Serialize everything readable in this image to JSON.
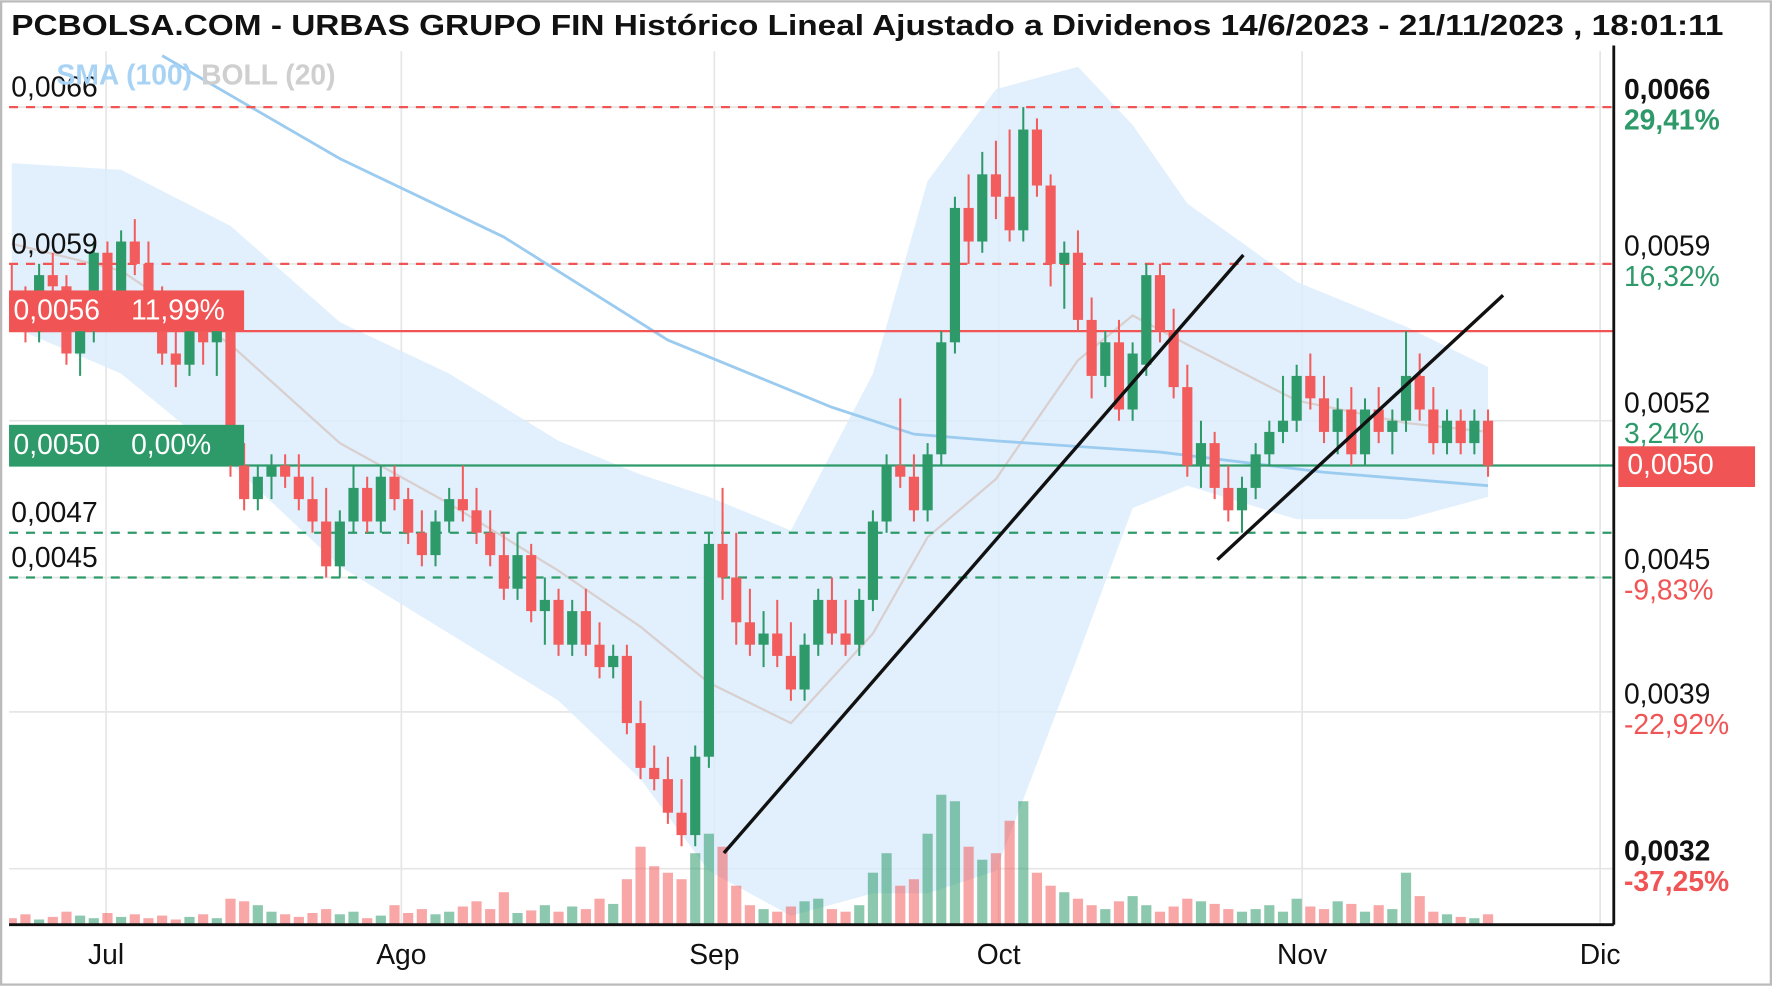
{
  "chart_data": {
    "type": "candlestick",
    "title": "PCBOLSA.COM - URBAS GRUPO FIN Histórico Lineal Ajustado a Dividenos 14/6/2023 - 21/11/2023 , 18:01:11",
    "legend": [
      {
        "name": "SMA (100)",
        "color": "#a9d3f5"
      },
      {
        "name": "BOLL (20)",
        "color": "#cfcfcf"
      }
    ],
    "up_color": "#2e9a6a",
    "down_color": "#f25c5c",
    "xlim": [
      -0.2,
      117.2
    ],
    "xticks": [
      {
        "value": 6.9,
        "label": "Jul"
      },
      {
        "value": 28.5,
        "label": "Ago"
      },
      {
        "value": 51.4,
        "label": "Sep"
      },
      {
        "value": 72.2,
        "label": "Oct"
      },
      {
        "value": 94.4,
        "label": "Nov"
      },
      {
        "value": 116.2,
        "label": "Dic"
      }
    ],
    "ylim": [
      0.00295,
      0.00685
    ],
    "yticks": [
      {
        "value": 0.0066,
        "label": "0,0066",
        "pct": "29,41%",
        "pct_color": "#2e9a6a",
        "bold": true
      },
      {
        "value": 0.0059,
        "label": "0,0059",
        "pct": "16,32%",
        "pct_color": "#2e9a6a",
        "bold": false
      },
      {
        "value": 0.0052,
        "label": "0,0052",
        "pct": "3,24%",
        "pct_color": "#2e9a6a",
        "bold": false
      },
      {
        "value": 0.0045,
        "label": "0,0045",
        "pct": "-9,83%",
        "pct_color": "#f05454",
        "bold": false
      },
      {
        "value": 0.0039,
        "label": "0,0039",
        "pct": "-22,92%",
        "pct_color": "#f05454",
        "bold": false
      },
      {
        "value": 0.0032,
        "label": "0,0032",
        "pct": "-37,25%",
        "pct_color": "#f05454",
        "bold": true
      }
    ],
    "grid": true,
    "last_price": {
      "value": 0.005,
      "label": "0,0050",
      "color": "#f05454"
    },
    "levels": [
      {
        "value": 0.0066,
        "color": "#f05454",
        "style": "dashed"
      },
      {
        "value": 0.0059,
        "color": "#f05454",
        "style": "dashed"
      },
      {
        "value": 0.0056,
        "color": "#f05454",
        "style": "solid"
      },
      {
        "value": 0.005,
        "color": "#2e9a6a",
        "style": "solid"
      },
      {
        "value": 0.0047,
        "color": "#2e9a6a",
        "style": "dashed"
      },
      {
        "value": 0.0045,
        "color": "#2e9a6a",
        "style": "dashed"
      }
    ],
    "left_labels": [
      {
        "value": 0.0066,
        "label": "0,0066"
      },
      {
        "value": 0.0059,
        "label": "0,0059"
      },
      {
        "value": 0.0047,
        "label": "0,0047"
      },
      {
        "value": 0.0045,
        "label": "0,0045"
      }
    ],
    "left_boxes": [
      {
        "value": 0.0056,
        "label": "0,0056",
        "pct": "11,99%",
        "color": "#f05454"
      },
      {
        "value": 0.005,
        "label": "0,0050",
        "pct": "0,00%",
        "color": "#2e9a6a"
      }
    ],
    "open": [
      0.00575,
      0.0057,
      0.0056,
      0.00585,
      0.0058,
      0.0055,
      0.0056,
      0.00595,
      0.00575,
      0.006,
      0.0059,
      0.00575,
      0.0055,
      0.00545,
      0.0056,
      0.00555,
      0.0056,
      0.005,
      0.00485,
      0.00495,
      0.005,
      0.00495,
      0.00485,
      0.00475,
      0.00455,
      0.00475,
      0.0049,
      0.00475,
      0.00495,
      0.00485,
      0.0047,
      0.0046,
      0.00475,
      0.00485,
      0.0048,
      0.0047,
      0.0046,
      0.00445,
      0.0046,
      0.00435,
      0.0044,
      0.0042,
      0.00435,
      0.0042,
      0.0041,
      0.00415,
      0.00385,
      0.00365,
      0.0036,
      0.00345,
      0.00335,
      0.0037,
      0.00465,
      0.0045,
      0.0043,
      0.0042,
      0.00425,
      0.00415,
      0.004,
      0.0042,
      0.0044,
      0.00425,
      0.0042,
      0.0044,
      0.00475,
      0.005,
      0.00495,
      0.0048,
      0.00505,
      0.00555,
      0.00615,
      0.006,
      0.0063,
      0.0062,
      0.00605,
      0.0065,
      0.00625,
      0.0059,
      0.00595,
      0.00565,
      0.0054,
      0.00555,
      0.00525,
      0.00545,
      0.00585,
      0.0056,
      0.00535,
      0.005,
      0.0051,
      0.0049,
      0.0048,
      0.0049,
      0.00505,
      0.00515,
      0.0052,
      0.0054,
      0.0053,
      0.00515,
      0.00525,
      0.00505,
      0.00525,
      0.00515,
      0.0052,
      0.0054,
      0.00525,
      0.0051,
      0.0052,
      0.0051,
      0.0052
    ],
    "high": [
      0.0059,
      0.0058,
      0.0059,
      0.00595,
      0.00585,
      0.00565,
      0.006,
      0.006,
      0.00605,
      0.0061,
      0.006,
      0.0058,
      0.0056,
      0.00565,
      0.0057,
      0.00565,
      0.00565,
      0.0051,
      0.005,
      0.00505,
      0.00505,
      0.00505,
      0.00495,
      0.0049,
      0.0048,
      0.005,
      0.00495,
      0.005,
      0.005,
      0.0049,
      0.0048,
      0.0048,
      0.0049,
      0.005,
      0.0049,
      0.0048,
      0.0047,
      0.0047,
      0.00465,
      0.0045,
      0.00445,
      0.0044,
      0.00445,
      0.0043,
      0.0042,
      0.0042,
      0.00395,
      0.00375,
      0.0037,
      0.0036,
      0.00375,
      0.0047,
      0.0049,
      0.0047,
      0.00445,
      0.00435,
      0.0044,
      0.0043,
      0.00425,
      0.00445,
      0.0045,
      0.0044,
      0.00445,
      0.0048,
      0.00505,
      0.0053,
      0.00505,
      0.0051,
      0.0056,
      0.0062,
      0.0063,
      0.0064,
      0.00645,
      0.0065,
      0.0066,
      0.00655,
      0.0063,
      0.006,
      0.00605,
      0.00575,
      0.0056,
      0.00565,
      0.00555,
      0.0059,
      0.0059,
      0.0057,
      0.00545,
      0.0052,
      0.00515,
      0.005,
      0.00495,
      0.0051,
      0.0052,
      0.0054,
      0.00545,
      0.0055,
      0.0054,
      0.0053,
      0.00535,
      0.0053,
      0.00535,
      0.00525,
      0.0056,
      0.0055,
      0.00535,
      0.00525,
      0.00525,
      0.00525,
      0.00525
    ],
    "low": [
      0.0056,
      0.00555,
      0.00555,
      0.00575,
      0.00545,
      0.0054,
      0.00555,
      0.0057,
      0.0057,
      0.00585,
      0.0057,
      0.00545,
      0.00535,
      0.0054,
      0.00545,
      0.0054,
      0.00495,
      0.0048,
      0.0048,
      0.00485,
      0.0049,
      0.0048,
      0.0047,
      0.0045,
      0.0045,
      0.0047,
      0.0047,
      0.0047,
      0.0048,
      0.00465,
      0.00455,
      0.00455,
      0.0047,
      0.00475,
      0.00465,
      0.00455,
      0.0044,
      0.0044,
      0.0043,
      0.0042,
      0.00415,
      0.00415,
      0.00415,
      0.00405,
      0.00405,
      0.0038,
      0.0036,
      0.00355,
      0.0034,
      0.0033,
      0.0033,
      0.00365,
      0.0044,
      0.0042,
      0.00415,
      0.0041,
      0.0041,
      0.00395,
      0.00395,
      0.00415,
      0.0042,
      0.00415,
      0.00415,
      0.00435,
      0.0047,
      0.0049,
      0.00475,
      0.00475,
      0.005,
      0.0055,
      0.0059,
      0.00595,
      0.0061,
      0.006,
      0.006,
      0.0062,
      0.0058,
      0.0057,
      0.0056,
      0.0053,
      0.00535,
      0.0052,
      0.0052,
      0.0054,
      0.00555,
      0.0053,
      0.00495,
      0.0049,
      0.00485,
      0.00475,
      0.0047,
      0.00485,
      0.005,
      0.0051,
      0.00515,
      0.00525,
      0.0051,
      0.00505,
      0.005,
      0.005,
      0.0051,
      0.00505,
      0.00515,
      0.0052,
      0.00505,
      0.00505,
      0.00505,
      0.00505,
      0.00495
    ],
    "close": [
      0.0057,
      0.0056,
      0.00585,
      0.0058,
      0.0055,
      0.0056,
      0.00595,
      0.00575,
      0.006,
      0.0059,
      0.00575,
      0.0055,
      0.00545,
      0.0056,
      0.00555,
      0.0056,
      0.005,
      0.00485,
      0.00495,
      0.005,
      0.00495,
      0.00485,
      0.00475,
      0.00455,
      0.00475,
      0.0049,
      0.00475,
      0.00495,
      0.00485,
      0.0047,
      0.0046,
      0.00475,
      0.00485,
      0.0048,
      0.0047,
      0.0046,
      0.00445,
      0.0046,
      0.00435,
      0.0044,
      0.0042,
      0.00435,
      0.0042,
      0.0041,
      0.00415,
      0.00385,
      0.00365,
      0.0036,
      0.00345,
      0.00335,
      0.0037,
      0.00465,
      0.0045,
      0.0043,
      0.0042,
      0.00425,
      0.00415,
      0.004,
      0.0042,
      0.0044,
      0.00425,
      0.0042,
      0.0044,
      0.00475,
      0.005,
      0.00495,
      0.0048,
      0.00505,
      0.00555,
      0.00615,
      0.006,
      0.0063,
      0.0062,
      0.00605,
      0.0065,
      0.00625,
      0.0059,
      0.00595,
      0.00565,
      0.0054,
      0.00555,
      0.00525,
      0.0055,
      0.00585,
      0.0056,
      0.00535,
      0.005,
      0.0051,
      0.0049,
      0.0048,
      0.0049,
      0.00505,
      0.00515,
      0.0052,
      0.0054,
      0.0053,
      0.00515,
      0.00525,
      0.00505,
      0.00525,
      0.00515,
      0.0052,
      0.0054,
      0.00525,
      0.0051,
      0.0052,
      0.0051,
      0.0052,
      0.005
    ],
    "volume": [
      5,
      8,
      4,
      6,
      10,
      7,
      5,
      9,
      6,
      8,
      5,
      7,
      4,
      6,
      8,
      5,
      20,
      18,
      15,
      10,
      8,
      6,
      9,
      12,
      8,
      10,
      5,
      7,
      15,
      9,
      12,
      8,
      10,
      14,
      18,
      12,
      25,
      9,
      11,
      15,
      10,
      14,
      12,
      20,
      16,
      35,
      60,
      45,
      40,
      35,
      55,
      70,
      60,
      30,
      15,
      12,
      10,
      14,
      18,
      20,
      12,
      10,
      15,
      40,
      55,
      30,
      35,
      70,
      100,
      95,
      60,
      50,
      55,
      80,
      95,
      40,
      30,
      25,
      20,
      15,
      12,
      18,
      22,
      15,
      10,
      14,
      20,
      18,
      16,
      12,
      10,
      12,
      15,
      10,
      20,
      14,
      12,
      18,
      16,
      10,
      15,
      12,
      40,
      22,
      10,
      8,
      6,
      5,
      8
    ],
    "sma": {
      "name": "SMA (100)",
      "color": "#9ccbf0",
      "x": [
        11,
        24,
        36,
        48,
        60,
        66,
        72,
        84,
        96,
        108
      ],
      "values": [
        0.00683,
        0.00637,
        0.00602,
        0.00556,
        0.00526,
        0.00514,
        0.00511,
        0.00506,
        0.00497,
        0.00491
      ]
    },
    "boll": {
      "name": "BOLL (20)",
      "fill": "#d9ecfb",
      "mid_color": "#d9cfcf",
      "x": [
        0,
        8,
        16,
        24,
        32,
        40,
        46,
        51,
        57,
        63,
        67,
        72,
        78,
        82,
        86,
        94,
        102,
        108
      ],
      "upper": [
        0.00635,
        0.00632,
        0.00607,
        0.00564,
        0.00541,
        0.00511,
        0.00496,
        0.00486,
        0.00471,
        0.00541,
        0.00627,
        0.00668,
        0.00678,
        0.00652,
        0.00617,
        0.00582,
        0.00562,
        0.00544
      ],
      "middle": [
        0.00599,
        0.00587,
        0.00554,
        0.0051,
        0.00483,
        0.00453,
        0.00428,
        0.00403,
        0.00385,
        0.00425,
        0.00468,
        0.00494,
        0.00547,
        0.00567,
        0.00554,
        0.00529,
        0.00519,
        0.00515
      ],
      "lower": [
        0.00562,
        0.00541,
        0.00501,
        0.00455,
        0.00425,
        0.00395,
        0.0036,
        0.00319,
        0.00299,
        0.00309,
        0.00309,
        0.00319,
        0.00415,
        0.00481,
        0.00491,
        0.00476,
        0.00476,
        0.00486
      ]
    },
    "trendlines": [
      {
        "x": [
          52.1,
          90.1
        ],
        "y": [
          0.00327,
          0.00594
        ]
      },
      {
        "x": [
          88.2,
          109.1
        ],
        "y": [
          0.00458,
          0.00576
        ]
      }
    ]
  }
}
